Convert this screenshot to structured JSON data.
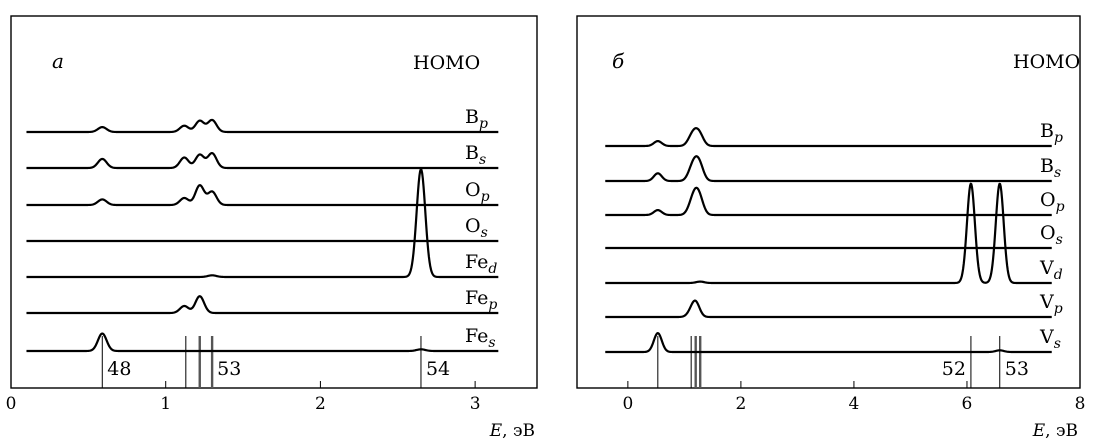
{
  "chart_data": [
    {
      "type": "line",
      "panel_label": "a",
      "peak_label": "HOMO",
      "xlabel": "E",
      "xunit": ", эВ",
      "xlim": [
        0,
        3.4
      ],
      "xticks": [
        0,
        1,
        2,
        3
      ],
      "baseline_x_range": [
        0.1,
        3.15
      ],
      "peak_width": 0.028,
      "series": [
        {
          "name": "B",
          "sub": "p",
          "peaks": [
            [
              0.59,
              0.35
            ],
            [
              1.12,
              0.45
            ],
            [
              1.22,
              0.8
            ],
            [
              1.3,
              0.85
            ]
          ]
        },
        {
          "name": "B",
          "sub": "s",
          "peaks": [
            [
              0.59,
              0.65
            ],
            [
              1.12,
              0.75
            ],
            [
              1.22,
              0.95
            ],
            [
              1.3,
              1.05
            ]
          ]
        },
        {
          "name": "O",
          "sub": "p",
          "peaks": [
            [
              0.59,
              0.4
            ],
            [
              1.12,
              0.5
            ],
            [
              1.22,
              1.4
            ],
            [
              1.3,
              0.95
            ]
          ]
        },
        {
          "name": "O",
          "sub": "s",
          "peaks": []
        },
        {
          "name": "Fe",
          "sub": "d",
          "peaks": [
            [
              1.3,
              0.12
            ],
            [
              2.65,
              7.7
            ]
          ]
        },
        {
          "name": "Fe",
          "sub": "p",
          "peaks": [
            [
              1.12,
              0.5
            ],
            [
              1.22,
              1.2
            ]
          ]
        },
        {
          "name": "Fe",
          "sub": "s",
          "peaks": [
            [
              0.59,
              1.25
            ],
            [
              2.65,
              0.12
            ]
          ]
        }
      ],
      "orbital_lines": [
        {
          "x": 0.59,
          "weight": "thin"
        },
        {
          "x": 1.13,
          "weight": "thin"
        },
        {
          "x": 1.22,
          "weight": "thick"
        },
        {
          "x": 1.3,
          "weight": "thick"
        },
        {
          "x": 2.65,
          "weight": "thin"
        }
      ],
      "orbital_labels": [
        {
          "text": "48",
          "x": 0.59,
          "side": "right"
        },
        {
          "text": "53",
          "x": 1.3,
          "side": "right"
        },
        {
          "text": "54",
          "x": 2.65,
          "side": "right"
        }
      ]
    },
    {
      "type": "line",
      "panel_label": "б",
      "peak_label": "HOMO",
      "xlabel": "E",
      "xunit": ", эВ",
      "xlim": [
        -0.9,
        8
      ],
      "xticks": [
        0,
        2,
        4,
        6,
        8
      ],
      "baseline_x_range": [
        -0.4,
        7.5
      ],
      "peak_width": 0.07,
      "series": [
        {
          "name": "B",
          "sub": "p",
          "peaks": [
            [
              0.53,
              0.35
            ],
            [
              1.12,
              0.5
            ],
            [
              1.2,
              0.7
            ],
            [
              1.28,
              0.6
            ]
          ]
        },
        {
          "name": "B",
          "sub": "s",
          "peaks": [
            [
              0.53,
              0.55
            ],
            [
              1.12,
              0.6
            ],
            [
              1.2,
              1.0
            ],
            [
              1.28,
              0.85
            ]
          ]
        },
        {
          "name": "O",
          "sub": "p",
          "peaks": [
            [
              0.53,
              0.35
            ],
            [
              1.12,
              0.55
            ],
            [
              1.2,
              1.2
            ],
            [
              1.28,
              0.85
            ]
          ]
        },
        {
          "name": "O",
          "sub": "s",
          "peaks": []
        },
        {
          "name": "V",
          "sub": "d",
          "peaks": [
            [
              1.28,
              0.1
            ],
            [
              6.07,
              7.1
            ],
            [
              6.58,
              7.1
            ]
          ]
        },
        {
          "name": "V",
          "sub": "p",
          "peaks": [
            [
              1.12,
              0.3
            ],
            [
              1.2,
              1.0
            ]
          ]
        },
        {
          "name": "V",
          "sub": "s",
          "peaks": [
            [
              0.53,
              1.35
            ],
            [
              6.58,
              0.12
            ]
          ]
        }
      ],
      "orbital_lines": [
        {
          "x": 0.53,
          "weight": "thin"
        },
        {
          "x": 1.12,
          "weight": "thin"
        },
        {
          "x": 1.2,
          "weight": "thick"
        },
        {
          "x": 1.28,
          "weight": "thick"
        },
        {
          "x": 6.07,
          "weight": "thin"
        },
        {
          "x": 6.58,
          "weight": "thin"
        }
      ],
      "orbital_labels": [
        {
          "text": "52",
          "x": 6.07,
          "side": "left"
        },
        {
          "text": "53",
          "x": 6.58,
          "side": "right"
        }
      ]
    }
  ]
}
